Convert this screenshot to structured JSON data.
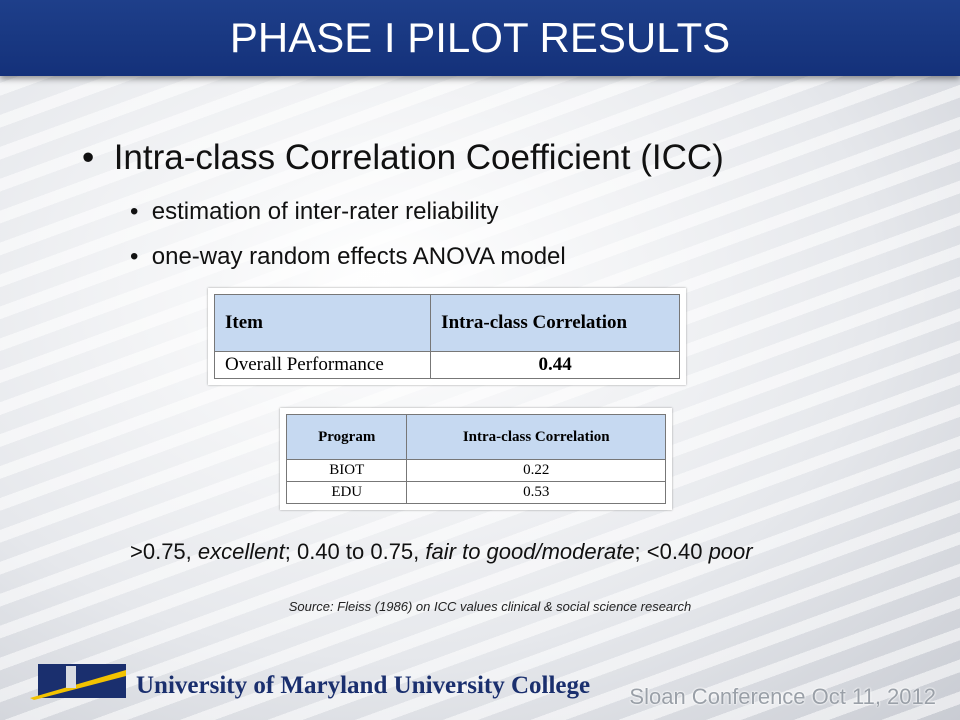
{
  "header": {
    "title": "PHASE I PILOT RESULTS"
  },
  "bullets": [
    {
      "text": "Intra-class Correlation Coefficient (ICC)",
      "sub": [
        "estimation of inter-rater reliability",
        "one-way random effects ANOVA model"
      ]
    }
  ],
  "table1": {
    "header": [
      "Item",
      "Intra-class Correlation"
    ],
    "rows": [
      [
        "Overall Performance",
        "0.44"
      ]
    ]
  },
  "table2": {
    "header": [
      "Program",
      "Intra-class Correlation"
    ],
    "rows": [
      [
        "BIOT",
        "0.22"
      ],
      [
        "EDU",
        "0.53"
      ]
    ]
  },
  "interpretation": [
    {
      "text": ">0.75, ",
      "italic": false
    },
    {
      "text": "excellent",
      "italic": true
    },
    {
      "text": "; 0.40 to 0.75, ",
      "italic": false
    },
    {
      "text": "fair to good/moderate",
      "italic": true
    },
    {
      "text": "; <0.40 ",
      "italic": false
    },
    {
      "text": "poor",
      "italic": true
    }
  ],
  "source": "Source: Fleiss (1986) on ICC values clinical & social science research",
  "logo": {
    "text": "University of Maryland University College"
  },
  "footer": "Sloan Conference Oct 11, 2012"
}
